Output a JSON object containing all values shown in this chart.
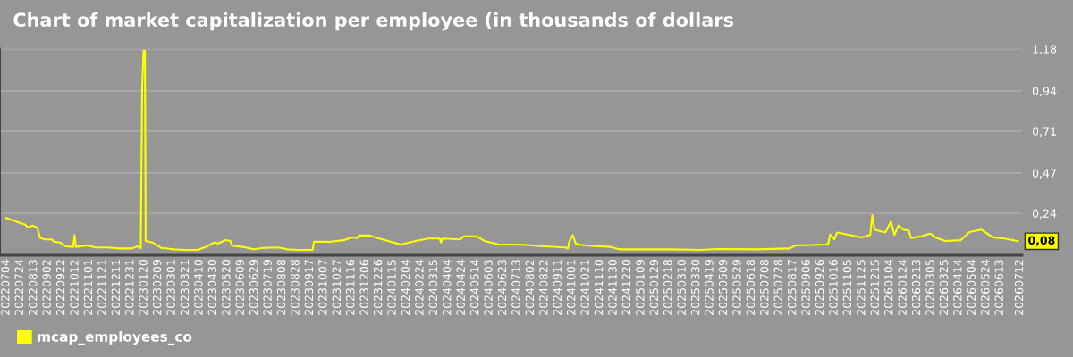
{
  "chart_data": {
    "type": "line",
    "title": "Chart of market capitalization per employee (in thousands of dollars",
    "series": [
      {
        "name": "mcap_employees_co",
        "color": "#ffff00",
        "x": [
          "2022-07-04",
          "2022-07-21",
          "2022-07-31",
          "2022-08-05",
          "2022-08-11",
          "2022-08-18",
          "2022-08-22",
          "2022-08-29",
          "2022-09-08",
          "2022-09-11",
          "2022-09-20",
          "2022-09-28",
          "2022-10-09",
          "2022-10-11",
          "2022-10-13",
          "2022-10-29",
          "2022-11-11",
          "2022-11-28",
          "2022-12-15",
          "2023-01-02",
          "2023-01-10",
          "2023-01-15",
          "2023-01-17",
          "2023-01-19",
          "2023-01-21",
          "2023-01-22",
          "2023-02-01",
          "2023-02-14",
          "2023-03-03",
          "2023-03-21",
          "2023-04-07",
          "2023-04-20",
          "2023-05-01",
          "2023-05-07",
          "2023-05-18",
          "2023-05-25",
          "2023-05-27",
          "2023-06-11",
          "2023-06-28",
          "2023-07-11",
          "2023-08-02",
          "2023-08-15",
          "2023-09-01",
          "2023-09-21",
          "2023-09-23",
          "2023-10-15",
          "2023-11-05",
          "2023-11-16",
          "2023-11-25",
          "2023-11-27",
          "2023-12-14",
          "2023-12-23",
          "2024-01-27",
          "2024-02-13",
          "2024-03-06",
          "2024-03-23",
          "2024-03-25",
          "2024-03-27",
          "2024-04-22",
          "2024-04-27",
          "2024-05-16",
          "2024-05-27",
          "2024-06-18",
          "2024-07-18",
          "2024-08-22",
          "2024-09-21",
          "2024-09-25",
          "2024-09-27",
          "2024-10-02",
          "2024-10-06",
          "2024-10-10",
          "2024-10-21",
          "2024-11-25",
          "2024-12-08",
          "2025-01-07",
          "2025-02-20",
          "2025-04-04",
          "2025-04-30",
          "2025-06-25",
          "2025-08-12",
          "2025-08-21",
          "2025-10-03",
          "2025-10-07",
          "2025-10-10",
          "2025-10-16",
          "2025-10-20",
          "2025-11-07",
          "2025-11-24",
          "2025-12-07",
          "2025-12-10",
          "2025-12-13",
          "2025-12-29",
          "2026-01-06",
          "2026-01-11",
          "2026-01-17",
          "2026-01-24",
          "2026-02-01",
          "2026-02-04",
          "2026-02-19",
          "2026-03-04",
          "2026-03-13",
          "2026-03-26",
          "2026-04-17",
          "2026-04-30",
          "2026-05-17",
          "2026-06-03",
          "2026-06-20",
          "2026-07-09"
        ],
        "values": [
          0.213,
          0.189,
          0.176,
          0.159,
          0.17,
          0.159,
          0.099,
          0.091,
          0.091,
          0.078,
          0.073,
          0.051,
          0.048,
          0.116,
          0.048,
          0.056,
          0.045,
          0.045,
          0.039,
          0.039,
          0.051,
          0.041,
          0.96,
          1.17,
          1.17,
          0.082,
          0.073,
          0.042,
          0.034,
          0.031,
          0.031,
          0.048,
          0.073,
          0.068,
          0.087,
          0.082,
          0.056,
          0.048,
          0.034,
          0.042,
          0.045,
          0.034,
          0.031,
          0.031,
          0.078,
          0.077,
          0.086,
          0.102,
          0.099,
          0.113,
          0.113,
          0.099,
          0.061,
          0.078,
          0.096,
          0.096,
          0.073,
          0.096,
          0.091,
          0.108,
          0.108,
          0.082,
          0.061,
          0.061,
          0.051,
          0.045,
          0.039,
          0.078,
          0.116,
          0.068,
          0.061,
          0.056,
          0.048,
          0.034,
          0.034,
          0.034,
          0.031,
          0.036,
          0.034,
          0.039,
          0.056,
          0.061,
          0.065,
          0.119,
          0.091,
          0.13,
          0.116,
          0.102,
          0.116,
          0.23,
          0.147,
          0.13,
          0.193,
          0.116,
          0.17,
          0.147,
          0.142,
          0.099,
          0.108,
          0.124,
          0.099,
          0.082,
          0.086,
          0.133,
          0.147,
          0.102,
          0.096,
          0.08
        ]
      }
    ],
    "annotations": [
      {
        "text": "0,08",
        "x": "2026-07-09",
        "y": 0.08
      }
    ],
    "xlim": [
      "2022-06-25",
      "2026-07-15"
    ],
    "xticks": [
      {
        "value": "2022-07-04",
        "label": "20220704"
      },
      {
        "value": "2022-07-24",
        "label": "20220724"
      },
      {
        "value": "2022-08-13",
        "label": "20220813"
      },
      {
        "value": "2022-09-02",
        "label": "20220902"
      },
      {
        "value": "2022-09-22",
        "label": "20220922"
      },
      {
        "value": "2022-10-12",
        "label": "20221012"
      },
      {
        "value": "2022-11-01",
        "label": "20221101"
      },
      {
        "value": "2022-11-21",
        "label": "20221121"
      },
      {
        "value": "2022-12-11",
        "label": "20221211"
      },
      {
        "value": "2022-12-31",
        "label": "20221231"
      },
      {
        "value": "2023-01-20",
        "label": "20230120"
      },
      {
        "value": "2023-02-09",
        "label": "20230209"
      },
      {
        "value": "2023-03-01",
        "label": "20230301"
      },
      {
        "value": "2023-03-21",
        "label": "20230321"
      },
      {
        "value": "2023-04-10",
        "label": "20230410"
      },
      {
        "value": "2023-04-30",
        "label": "20230430"
      },
      {
        "value": "2023-05-20",
        "label": "20230520"
      },
      {
        "value": "2023-06-09",
        "label": "20230609"
      },
      {
        "value": "2023-06-29",
        "label": "20230629"
      },
      {
        "value": "2023-07-19",
        "label": "20230719"
      },
      {
        "value": "2023-08-08",
        "label": "20230808"
      },
      {
        "value": "2023-08-28",
        "label": "20230828"
      },
      {
        "value": "2023-09-17",
        "label": "20230917"
      },
      {
        "value": "2023-10-07",
        "label": "20231007"
      },
      {
        "value": "2023-10-27",
        "label": "20231027"
      },
      {
        "value": "2023-11-16",
        "label": "20231116"
      },
      {
        "value": "2023-12-06",
        "label": "20231206"
      },
      {
        "value": "2023-12-26",
        "label": "20231226"
      },
      {
        "value": "2024-01-15",
        "label": "20240115"
      },
      {
        "value": "2024-02-04",
        "label": "20240204"
      },
      {
        "value": "2024-02-24",
        "label": "20240224"
      },
      {
        "value": "2024-03-15",
        "label": "20240315"
      },
      {
        "value": "2024-04-04",
        "label": "20240404"
      },
      {
        "value": "2024-04-24",
        "label": "20240424"
      },
      {
        "value": "2024-05-14",
        "label": "20240514"
      },
      {
        "value": "2024-06-03",
        "label": "20240603"
      },
      {
        "value": "2024-06-23",
        "label": "20240623"
      },
      {
        "value": "2024-07-13",
        "label": "20240713"
      },
      {
        "value": "2024-08-02",
        "label": "20240802"
      },
      {
        "value": "2024-08-22",
        "label": "20240822"
      },
      {
        "value": "2024-09-11",
        "label": "20240911"
      },
      {
        "value": "2024-10-01",
        "label": "20241001"
      },
      {
        "value": "2024-10-21",
        "label": "20241021"
      },
      {
        "value": "2024-11-10",
        "label": "20241110"
      },
      {
        "value": "2024-11-30",
        "label": "20241130"
      },
      {
        "value": "2024-12-20",
        "label": "20241220"
      },
      {
        "value": "2025-01-09",
        "label": "20250109"
      },
      {
        "value": "2025-01-29",
        "label": "20250129"
      },
      {
        "value": "2025-02-18",
        "label": "20250218"
      },
      {
        "value": "2025-03-10",
        "label": "20250310"
      },
      {
        "value": "2025-03-30",
        "label": "20250330"
      },
      {
        "value": "2025-04-19",
        "label": "20250419"
      },
      {
        "value": "2025-05-09",
        "label": "20250509"
      },
      {
        "value": "2025-05-29",
        "label": "20250529"
      },
      {
        "value": "2025-06-18",
        "label": "20250618"
      },
      {
        "value": "2025-07-08",
        "label": "20250708"
      },
      {
        "value": "2025-07-28",
        "label": "20250728"
      },
      {
        "value": "2025-08-17",
        "label": "20250817"
      },
      {
        "value": "2025-09-06",
        "label": "20250906"
      },
      {
        "value": "2025-09-26",
        "label": "20250926"
      },
      {
        "value": "2025-10-16",
        "label": "20251016"
      },
      {
        "value": "2025-11-05",
        "label": "20251105"
      },
      {
        "value": "2025-11-25",
        "label": "20251125"
      },
      {
        "value": "2025-12-15",
        "label": "20251215"
      },
      {
        "value": "2026-01-04",
        "label": "20260104"
      },
      {
        "value": "2026-01-24",
        "label": "20260124"
      },
      {
        "value": "2026-02-13",
        "label": "20260213"
      },
      {
        "value": "2026-03-05",
        "label": "20260305"
      },
      {
        "value": "2026-03-25",
        "label": "20260325"
      },
      {
        "value": "2026-04-14",
        "label": "20260414"
      },
      {
        "value": "2026-05-04",
        "label": "20260504"
      },
      {
        "value": "2026-05-24",
        "label": "20260524"
      },
      {
        "value": "2026-06-13",
        "label": "20260613"
      },
      {
        "value": "2026-07-12",
        "label": "20260712"
      }
    ],
    "ylim": [
      0,
      1.18
    ],
    "yticks": [
      {
        "value": 0.24,
        "label": "0,24"
      },
      {
        "value": 0.47,
        "label": "0,47"
      },
      {
        "value": 0.71,
        "label": "0,71"
      },
      {
        "value": 0.94,
        "label": "0,94"
      },
      {
        "value": 1.18,
        "label": "1,18"
      }
    ],
    "grid": "y",
    "legend": "bottom left",
    "line_style": "solid",
    "marker": "none"
  }
}
